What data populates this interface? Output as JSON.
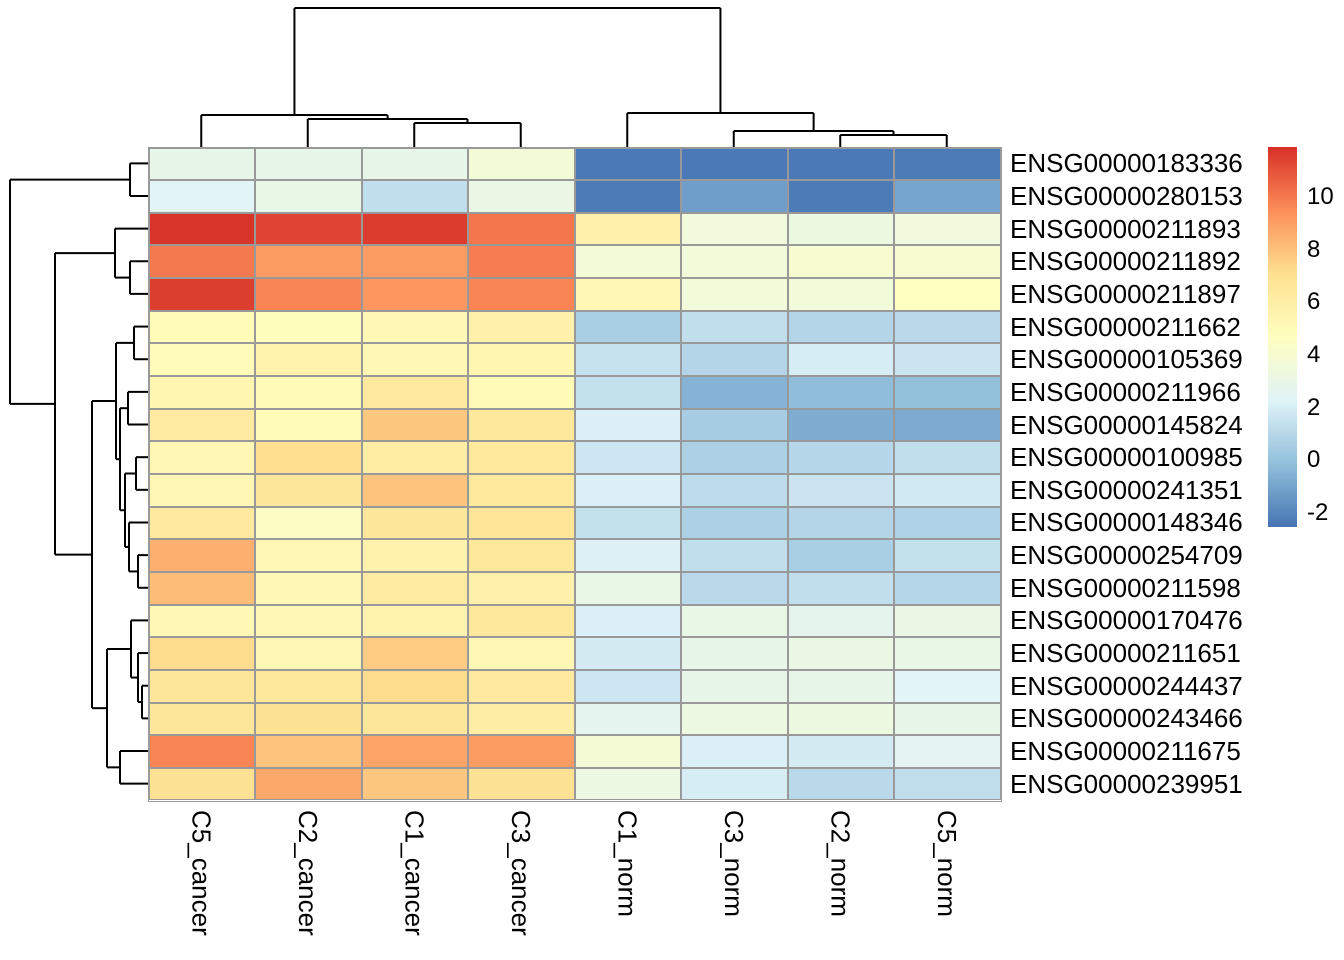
{
  "chart_data": {
    "type": "heatmap",
    "title": "",
    "description": "Clustered expression heatmap with row and column dendrograms",
    "columns": [
      "C5_cancer",
      "C2_cancer",
      "C1_cancer",
      "C3_cancer",
      "C1_norm",
      "C3_norm",
      "C2_norm",
      "C5_norm"
    ],
    "rows": [
      "ENSG00000183336",
      "ENSG00000280153",
      "ENSG00000211893",
      "ENSG00000211892",
      "ENSG00000211897",
      "ENSG00000211662",
      "ENSG00000105369",
      "ENSG00000211966",
      "ENSG00000145824",
      "ENSG00000100985",
      "ENSG00000241351",
      "ENSG00000148346",
      "ENSG00000254709",
      "ENSG00000211598",
      "ENSG00000170476",
      "ENSG00000211651",
      "ENSG00000244437",
      "ENSG00000243466",
      "ENSG00000211675",
      "ENSG00000239951"
    ],
    "values": [
      [
        2.9,
        2.9,
        2.9,
        3.7,
        -2.4,
        -2.4,
        -2.4,
        -2.3
      ],
      [
        2.4,
        3.0,
        1.3,
        3.1,
        -2.3,
        -1.2,
        -2.3,
        -1.0
      ],
      [
        11.8,
        11.4,
        11.6,
        10.1,
        5.8,
        3.5,
        3.3,
        3.5
      ],
      [
        10.0,
        9.1,
        9.1,
        9.9,
        3.7,
        3.6,
        4.0,
        4.0
      ],
      [
        11.5,
        9.7,
        9.2,
        9.7,
        5.3,
        3.6,
        3.6,
        4.6
      ],
      [
        5.0,
        4.8,
        5.2,
        5.8,
        0.6,
        1.3,
        0.9,
        1.1
      ],
      [
        4.9,
        5.6,
        5.2,
        5.4,
        1.5,
        0.9,
        2.0,
        1.6
      ],
      [
        5.4,
        5.1,
        6.3,
        5.1,
        1.4,
        -0.5,
        -0.2,
        -0.1
      ],
      [
        6.2,
        5.0,
        7.8,
        6.5,
        2.1,
        0.5,
        -0.7,
        -0.8
      ],
      [
        5.3,
        7.1,
        6.1,
        6.4,
        1.7,
        0.7,
        1.0,
        1.3
      ],
      [
        5.3,
        6.6,
        7.9,
        6.4,
        2.1,
        1.2,
        1.6,
        1.8
      ],
      [
        6.3,
        4.5,
        6.6,
        6.7,
        1.4,
        0.7,
        0.9,
        0.8
      ],
      [
        8.5,
        5.3,
        5.7,
        6.5,
        2.2,
        1.3,
        0.6,
        1.4
      ],
      [
        8.1,
        5.2,
        6.2,
        5.8,
        3.0,
        1.1,
        1.3,
        1.0
      ],
      [
        5.2,
        5.2,
        5.6,
        6.5,
        2.1,
        3.0,
        2.7,
        3.1
      ],
      [
        7.2,
        5.3,
        7.7,
        5.3,
        1.9,
        2.9,
        3.1,
        3.0
      ],
      [
        6.6,
        6.5,
        7.2,
        6.3,
        1.7,
        2.9,
        2.9,
        2.4
      ],
      [
        6.6,
        6.9,
        6.6,
        6.0,
        2.6,
        3.2,
        3.3,
        2.9
      ],
      [
        9.7,
        7.9,
        8.8,
        9.1,
        3.8,
        2.1,
        1.9,
        2.5
      ],
      [
        6.9,
        8.7,
        7.8,
        6.9,
        3.2,
        2.0,
        1.1,
        1.3
      ]
    ],
    "colorscale": {
      "name": "RdYlBu-reversed",
      "domain": [
        -2.53,
        11.9
      ],
      "stops": [
        "#4575B4",
        "#91BFDB",
        "#E0F3F8",
        "#FFFFBF",
        "#FEE090",
        "#FC8D59",
        "#D73027"
      ]
    },
    "colorbar_ticks": [
      "10",
      "8",
      "6",
      "4",
      "2",
      "0",
      "-2"
    ],
    "grid_color": "#999999",
    "dendrogram_color": "#000000",
    "col_dendrogram": {
      "merges": [
        {
          "id": "mD",
          "pos": 123,
          "a": "c3",
          "b": "c4"
        },
        {
          "id": "mE",
          "pos": 119,
          "a": "c2",
          "b": "mD"
        },
        {
          "id": "mF",
          "pos": 115,
          "a": "c1",
          "b": "mE"
        },
        {
          "id": "mA",
          "pos": 135,
          "a": "c7",
          "b": "c8"
        },
        {
          "id": "mB",
          "pos": 131,
          "a": "c6",
          "b": "mA"
        },
        {
          "id": "mC",
          "pos": 113,
          "a": "c5",
          "b": "mB"
        },
        {
          "id": "root",
          "pos": 8,
          "a": "mF",
          "b": "mC"
        }
      ]
    },
    "row_dendrogram": {
      "merges": [
        {
          "id": "m12",
          "pos": 130,
          "a": "r1",
          "b": "r2"
        },
        {
          "id": "m45",
          "pos": 130,
          "a": "r4",
          "b": "r5"
        },
        {
          "id": "m345",
          "pos": 115,
          "a": "r3",
          "b": "m45"
        },
        {
          "id": "m67",
          "pos": 134,
          "a": "r6",
          "b": "r7"
        },
        {
          "id": "m89",
          "pos": 128,
          "a": "r8",
          "b": "r9"
        },
        {
          "id": "m1011",
          "pos": 136,
          "a": "r10",
          "b": "r11"
        },
        {
          "id": "m1314",
          "pos": 138,
          "a": "r13",
          "b": "r14"
        },
        {
          "id": "mA",
          "pos": 129,
          "a": "r12",
          "b": "m1314"
        },
        {
          "id": "mB",
          "pos": 125,
          "a": "m1011",
          "b": "mA"
        },
        {
          "id": "mC",
          "pos": 120,
          "a": "m89",
          "b": "mB"
        },
        {
          "id": "mX",
          "pos": 116,
          "a": "m67",
          "b": "mC"
        },
        {
          "id": "m1718",
          "pos": 142,
          "a": "r17",
          "b": "r18"
        },
        {
          "id": "m16",
          "pos": 138,
          "a": "r16",
          "b": "m1718"
        },
        {
          "id": "mP",
          "pos": 131,
          "a": "r15",
          "b": "m16"
        },
        {
          "id": "m1920",
          "pos": 120,
          "a": "r19",
          "b": "r20"
        },
        {
          "id": "mY",
          "pos": 107,
          "a": "mP",
          "b": "m1920"
        },
        {
          "id": "mD2",
          "pos": 92,
          "a": "mX",
          "b": "mY"
        },
        {
          "id": "mC2",
          "pos": 55,
          "a": "m345",
          "b": "mD2"
        },
        {
          "id": "root",
          "pos": 10,
          "a": "m12",
          "b": "mC2"
        }
      ]
    }
  }
}
